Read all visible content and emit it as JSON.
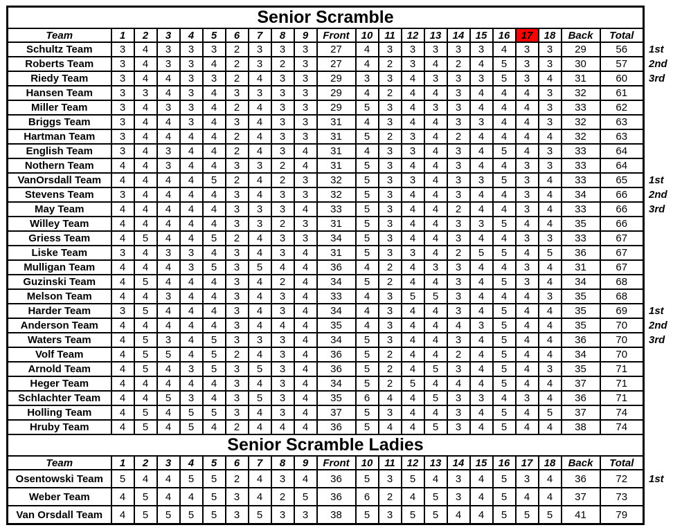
{
  "document": {
    "background": "#ffffff",
    "border_color": "#000000",
    "text_color": "#000000",
    "highlight_color": "#ff0000"
  },
  "columns": {
    "team": "Team",
    "front_holes": [
      "1",
      "2",
      "3",
      "4",
      "5",
      "6",
      "7",
      "8",
      "9"
    ],
    "front": "Front",
    "back_holes": [
      "10",
      "11",
      "12",
      "13",
      "14",
      "15",
      "16",
      "17",
      "18"
    ],
    "back": "Back",
    "total": "Total"
  },
  "sections": [
    {
      "title": "Senior Scramble",
      "highlighted_hole": "17",
      "rows": [
        {
          "team": "Schultz Team",
          "holes_front": [
            3,
            4,
            3,
            3,
            3,
            2,
            3,
            3,
            3
          ],
          "front": 27,
          "holes_back": [
            4,
            3,
            3,
            3,
            3,
            3,
            4,
            3,
            3
          ],
          "back": 29,
          "total": 56,
          "rank": "1st"
        },
        {
          "team": "Roberts Team",
          "holes_front": [
            3,
            4,
            3,
            3,
            4,
            2,
            3,
            2,
            3
          ],
          "front": 27,
          "holes_back": [
            4,
            2,
            3,
            4,
            2,
            4,
            5,
            3,
            3
          ],
          "back": 30,
          "total": 57,
          "rank": "2nd"
        },
        {
          "team": "Riedy Team",
          "holes_front": [
            3,
            4,
            4,
            3,
            3,
            2,
            4,
            3,
            3
          ],
          "front": 29,
          "holes_back": [
            3,
            3,
            4,
            3,
            3,
            3,
            5,
            3,
            4
          ],
          "back": 31,
          "total": 60,
          "rank": "3rd"
        },
        {
          "team": "Hansen Team",
          "holes_front": [
            3,
            3,
            4,
            3,
            4,
            3,
            3,
            3,
            3
          ],
          "front": 29,
          "holes_back": [
            4,
            2,
            4,
            4,
            3,
            4,
            4,
            4,
            3
          ],
          "back": 32,
          "total": 61,
          "rank": null
        },
        {
          "team": "Miller Team",
          "holes_front": [
            3,
            4,
            3,
            3,
            4,
            2,
            4,
            3,
            3
          ],
          "front": 29,
          "holes_back": [
            5,
            3,
            4,
            3,
            3,
            4,
            4,
            4,
            3
          ],
          "back": 33,
          "total": 62,
          "rank": null
        },
        {
          "team": "Briggs Team",
          "holes_front": [
            3,
            4,
            4,
            3,
            4,
            3,
            4,
            3,
            3
          ],
          "front": 31,
          "holes_back": [
            4,
            3,
            4,
            4,
            3,
            3,
            4,
            4,
            3
          ],
          "back": 32,
          "total": 63,
          "rank": null
        },
        {
          "team": "Hartman Team",
          "holes_front": [
            3,
            4,
            4,
            4,
            4,
            2,
            4,
            3,
            3
          ],
          "front": 31,
          "holes_back": [
            5,
            2,
            3,
            4,
            2,
            4,
            4,
            4,
            4
          ],
          "back": 32,
          "total": 63,
          "rank": null
        },
        {
          "team": "English Team",
          "holes_front": [
            3,
            4,
            3,
            4,
            4,
            2,
            4,
            3,
            4
          ],
          "front": 31,
          "holes_back": [
            4,
            3,
            3,
            4,
            3,
            4,
            5,
            4,
            3
          ],
          "back": 33,
          "total": 64,
          "rank": null
        },
        {
          "team": "Nothern Team",
          "holes_front": [
            4,
            4,
            3,
            4,
            4,
            3,
            3,
            2,
            4
          ],
          "front": 31,
          "holes_back": [
            5,
            3,
            4,
            4,
            3,
            4,
            4,
            3,
            3
          ],
          "back": 33,
          "total": 64,
          "rank": null
        },
        {
          "team": "VanOrsdall Team",
          "holes_front": [
            4,
            4,
            4,
            4,
            5,
            2,
            4,
            2,
            3
          ],
          "front": 32,
          "holes_back": [
            5,
            3,
            3,
            4,
            3,
            3,
            5,
            3,
            4
          ],
          "back": 33,
          "total": 65,
          "rank": "1st"
        },
        {
          "team": "Stevens Team",
          "holes_front": [
            3,
            4,
            4,
            4,
            4,
            3,
            4,
            3,
            3
          ],
          "front": 32,
          "holes_back": [
            5,
            3,
            4,
            4,
            3,
            4,
            4,
            3,
            4
          ],
          "back": 34,
          "total": 66,
          "rank": "2nd"
        },
        {
          "team": "May Team",
          "holes_front": [
            4,
            4,
            4,
            4,
            4,
            3,
            3,
            3,
            4
          ],
          "front": 33,
          "holes_back": [
            5,
            3,
            4,
            4,
            2,
            4,
            4,
            3,
            4
          ],
          "back": 33,
          "total": 66,
          "rank": "3rd"
        },
        {
          "team": "Willey Team",
          "holes_front": [
            4,
            4,
            4,
            4,
            4,
            3,
            3,
            2,
            3
          ],
          "front": 31,
          "holes_back": [
            5,
            3,
            4,
            4,
            3,
            3,
            5,
            4,
            4
          ],
          "back": 35,
          "total": 66,
          "rank": null
        },
        {
          "team": "Griess Team",
          "holes_front": [
            4,
            5,
            4,
            4,
            5,
            2,
            4,
            3,
            3
          ],
          "front": 34,
          "holes_back": [
            5,
            3,
            4,
            4,
            3,
            4,
            4,
            3,
            3
          ],
          "back": 33,
          "total": 67,
          "rank": null
        },
        {
          "team": "Liske Team",
          "holes_front": [
            3,
            4,
            3,
            3,
            4,
            3,
            4,
            3,
            4
          ],
          "front": 31,
          "holes_back": [
            5,
            3,
            3,
            4,
            2,
            5,
            5,
            4,
            5
          ],
          "back": 36,
          "total": 67,
          "rank": null
        },
        {
          "team": "Mulligan Team",
          "holes_front": [
            4,
            4,
            4,
            3,
            5,
            3,
            5,
            4,
            4
          ],
          "front": 36,
          "holes_back": [
            4,
            2,
            4,
            3,
            3,
            4,
            4,
            3,
            4
          ],
          "back": 31,
          "total": 67,
          "rank": null
        },
        {
          "team": "Guzinski Team",
          "holes_front": [
            4,
            5,
            4,
            4,
            4,
            3,
            4,
            2,
            4
          ],
          "front": 34,
          "holes_back": [
            5,
            2,
            4,
            4,
            3,
            4,
            5,
            3,
            4
          ],
          "back": 34,
          "total": 68,
          "rank": null
        },
        {
          "team": "Melson Team",
          "holes_front": [
            4,
            4,
            3,
            4,
            4,
            3,
            4,
            3,
            4
          ],
          "front": 33,
          "holes_back": [
            4,
            3,
            5,
            5,
            3,
            4,
            4,
            4,
            3
          ],
          "back": 35,
          "total": 68,
          "rank": null
        },
        {
          "team": "Harder Team",
          "holes_front": [
            3,
            5,
            4,
            4,
            4,
            3,
            4,
            3,
            4
          ],
          "front": 34,
          "holes_back": [
            4,
            3,
            4,
            4,
            3,
            4,
            5,
            4,
            4
          ],
          "back": 35,
          "total": 69,
          "rank": "1st"
        },
        {
          "team": "Anderson Team",
          "holes_front": [
            4,
            4,
            4,
            4,
            4,
            3,
            4,
            4,
            4
          ],
          "front": 35,
          "holes_back": [
            4,
            3,
            4,
            4,
            4,
            3,
            5,
            4,
            4
          ],
          "back": 35,
          "total": 70,
          "rank": "2nd"
        },
        {
          "team": "Waters Team",
          "holes_front": [
            4,
            5,
            3,
            4,
            5,
            3,
            3,
            3,
            4
          ],
          "front": 34,
          "holes_back": [
            5,
            3,
            4,
            4,
            3,
            4,
            5,
            4,
            4
          ],
          "back": 36,
          "total": 70,
          "rank": "3rd"
        },
        {
          "team": "Volf Team",
          "holes_front": [
            4,
            5,
            5,
            4,
            5,
            2,
            4,
            3,
            4
          ],
          "front": 36,
          "holes_back": [
            5,
            2,
            4,
            4,
            2,
            4,
            5,
            4,
            4
          ],
          "back": 34,
          "total": 70,
          "rank": null
        },
        {
          "team": "Arnold Team",
          "holes_front": [
            4,
            5,
            4,
            3,
            5,
            3,
            5,
            3,
            4
          ],
          "front": 36,
          "holes_back": [
            5,
            2,
            4,
            5,
            3,
            4,
            5,
            4,
            3
          ],
          "back": 35,
          "total": 71,
          "rank": null
        },
        {
          "team": "Heger Team",
          "holes_front": [
            4,
            4,
            4,
            4,
            4,
            3,
            4,
            3,
            4
          ],
          "front": 34,
          "holes_back": [
            5,
            2,
            5,
            4,
            4,
            4,
            5,
            4,
            4
          ],
          "back": 37,
          "total": 71,
          "rank": null
        },
        {
          "team": "Schlachter Team",
          "holes_front": [
            4,
            4,
            5,
            3,
            4,
            3,
            5,
            3,
            4
          ],
          "front": 35,
          "holes_back": [
            6,
            4,
            4,
            5,
            3,
            3,
            4,
            3,
            4
          ],
          "back": 36,
          "total": 71,
          "rank": null
        },
        {
          "team": "Holling Team",
          "holes_front": [
            4,
            5,
            4,
            5,
            5,
            3,
            4,
            3,
            4
          ],
          "front": 37,
          "holes_back": [
            5,
            3,
            4,
            4,
            3,
            4,
            5,
            4,
            5
          ],
          "back": 37,
          "total": 74,
          "rank": null
        },
        {
          "team": "Hruby Team",
          "holes_front": [
            4,
            5,
            4,
            5,
            4,
            2,
            4,
            4,
            4
          ],
          "front": 36,
          "holes_back": [
            5,
            4,
            4,
            5,
            3,
            4,
            5,
            4,
            4
          ],
          "back": 38,
          "total": 74,
          "rank": null
        }
      ]
    },
    {
      "title": "Senior Scramble Ladies",
      "highlighted_hole": null,
      "rows": [
        {
          "team": "Osentowski Team",
          "holes_front": [
            5,
            4,
            4,
            5,
            5,
            2,
            4,
            3,
            4
          ],
          "front": 36,
          "holes_back": [
            5,
            3,
            5,
            4,
            3,
            4,
            5,
            3,
            4
          ],
          "back": 36,
          "total": 72,
          "rank": "1st"
        },
        {
          "team": "Weber Team",
          "holes_front": [
            4,
            5,
            4,
            4,
            5,
            3,
            4,
            2,
            5
          ],
          "front": 36,
          "holes_back": [
            6,
            2,
            4,
            5,
            3,
            4,
            5,
            4,
            4
          ],
          "back": 37,
          "total": 73,
          "rank": null
        },
        {
          "team": "Van Orsdall Team",
          "holes_front": [
            4,
            5,
            5,
            5,
            5,
            3,
            5,
            3,
            3
          ],
          "front": 38,
          "holes_back": [
            5,
            3,
            5,
            5,
            4,
            4,
            5,
            5,
            5
          ],
          "back": 41,
          "total": 79,
          "rank": null
        }
      ]
    }
  ]
}
